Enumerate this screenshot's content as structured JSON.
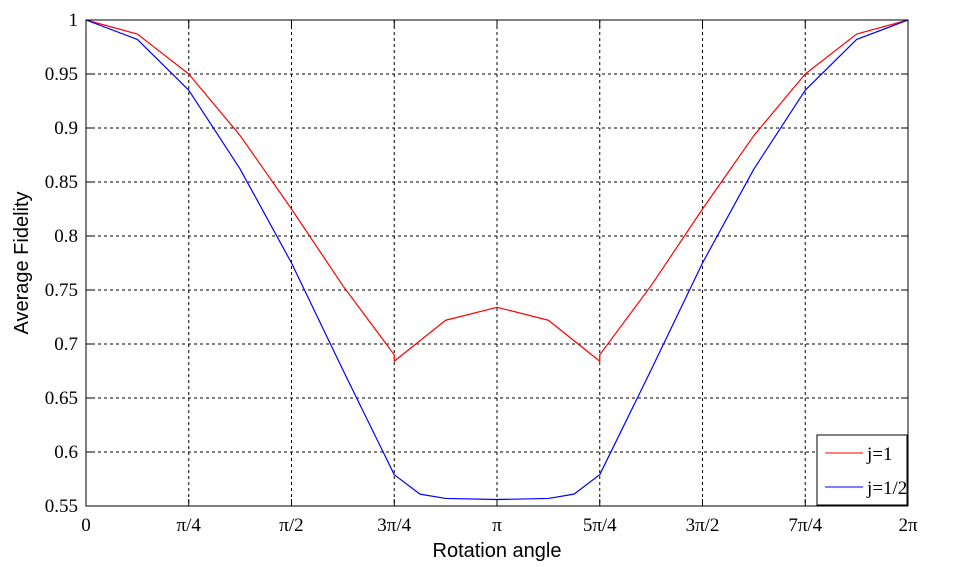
{
  "chart_data": {
    "type": "line",
    "title": "",
    "xlabel": "Rotation angle",
    "ylabel": "Average Fidelity",
    "xlim": [
      0,
      6.283185307
    ],
    "ylim": [
      0.55,
      1
    ],
    "x_tick_values": [
      0,
      0.785398,
      1.570796,
      2.356194,
      3.141593,
      3.926991,
      4.712389,
      5.497787,
      6.283185
    ],
    "x_tick_labels": [
      "0",
      "π/4",
      "π/2",
      "3π/4",
      "π",
      "5π/4",
      "3π/2",
      "7π/4",
      "2π"
    ],
    "y_tick_values": [
      0.55,
      0.6,
      0.65,
      0.7,
      0.75,
      0.8,
      0.85,
      0.9,
      0.95,
      1
    ],
    "y_tick_labels": [
      "0.55",
      "0.6",
      "0.65",
      "0.7",
      "0.75",
      "0.8",
      "0.85",
      "0.9",
      "0.95",
      "1"
    ],
    "grid": true,
    "legend_position": "bottom-right",
    "series": [
      {
        "name": "j=1",
        "color": "#ff0000",
        "x": [
          0,
          0.3927,
          0.7854,
          1.1781,
          1.5708,
          1.9635,
          2.3562,
          2.3562,
          2.7489,
          3.1416,
          3.5343,
          3.927,
          3.927,
          4.3197,
          4.7124,
          5.1051,
          5.4978,
          5.8905,
          6.2832
        ],
        "y": [
          1.0,
          0.987,
          0.95,
          0.893,
          0.825,
          0.754,
          0.69,
          0.684,
          0.722,
          0.734,
          0.722,
          0.684,
          0.69,
          0.754,
          0.825,
          0.893,
          0.95,
          0.987,
          1.0
        ]
      },
      {
        "name": "j=1/2",
        "color": "#0000ff",
        "x": [
          0,
          0.3927,
          0.7854,
          1.1781,
          1.5708,
          1.9635,
          2.3562,
          2.5525,
          2.7489,
          3.1416,
          3.5343,
          3.7306,
          3.927,
          4.3197,
          4.7124,
          5.1051,
          5.4978,
          5.8905,
          6.2832
        ],
        "y": [
          1.0,
          0.982,
          0.935,
          0.862,
          0.775,
          0.676,
          0.579,
          0.561,
          0.557,
          0.556,
          0.557,
          0.561,
          0.579,
          0.676,
          0.775,
          0.862,
          0.935,
          0.982,
          1.0
        ]
      }
    ]
  }
}
